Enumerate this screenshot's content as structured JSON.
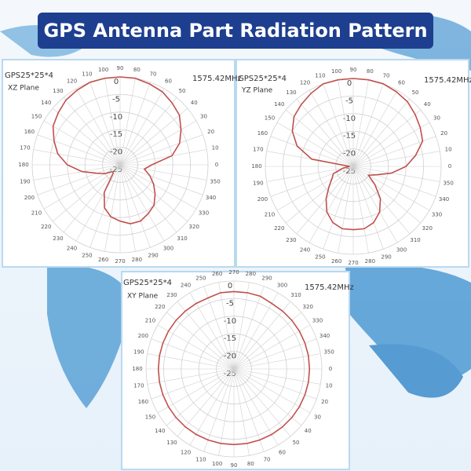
{
  "header": {
    "title": "GPS Antenna Part Radiation Pattern"
  },
  "chart_data": [
    {
      "type": "polar",
      "title": "GPS25*25*4",
      "subtitle": "XZ Plane",
      "annotation": "1575.42MHz",
      "direction": "counterclockwise",
      "color": "#c0504d",
      "x": [
        0,
        10,
        20,
        30,
        40,
        50,
        60,
        70,
        80,
        90,
        100,
        110,
        120,
        130,
        140,
        150,
        160,
        170,
        180,
        190,
        200,
        210,
        220,
        230,
        240,
        250,
        260,
        270,
        280,
        290,
        300,
        310,
        320,
        330,
        340,
        350
      ],
      "values": [
        -16,
        -10,
        -7,
        -5,
        -3,
        -2,
        -1,
        -0.5,
        0,
        0,
        0,
        0,
        -0.5,
        -1,
        -2,
        -3,
        -5,
        -7,
        -10,
        -14,
        -18,
        -20,
        -22,
        -22,
        -16,
        -12,
        -10,
        -9,
        -8,
        -8,
        -9,
        -10,
        -12,
        -14,
        -16,
        -18
      ],
      "ylim": [
        -25,
        0
      ],
      "yticks": [
        0,
        -5,
        -10,
        -15,
        -20,
        -25
      ],
      "grid": true
    },
    {
      "type": "polar",
      "title": "GPS25*25*4",
      "subtitle": "YZ Plane",
      "annotation": "1575.42MHz",
      "direction": "counterclockwise",
      "color": "#c0504d",
      "x": [
        0,
        10,
        20,
        30,
        40,
        50,
        60,
        70,
        80,
        90,
        100,
        110,
        120,
        130,
        140,
        150,
        160,
        170,
        180,
        190,
        200,
        210,
        220,
        230,
        240,
        250,
        260,
        270,
        280,
        290,
        300,
        310,
        320,
        330,
        340,
        350
      ],
      "values": [
        -10,
        -7,
        -4,
        -3,
        -2,
        -1,
        -0.5,
        0,
        0,
        0,
        0,
        0,
        -1,
        -2,
        -3,
        -5,
        -8,
        -13,
        -24,
        -22,
        -19,
        -18,
        -16,
        -13,
        -10,
        -8,
        -7,
        -7,
        -7,
        -8,
        -10,
        -13,
        -17,
        -20,
        -18,
        -14
      ],
      "ylim": [
        -25,
        0
      ],
      "yticks": [
        0,
        -5,
        -10,
        -15,
        -20,
        -25
      ],
      "grid": true
    },
    {
      "type": "polar",
      "title": "GPS25*25*4",
      "subtitle": "XY Plane",
      "annotation": "1575.42MHz",
      "direction": "clockwise",
      "color": "#c0504d",
      "x": [
        0,
        10,
        20,
        30,
        40,
        50,
        60,
        70,
        80,
        90,
        100,
        110,
        120,
        130,
        140,
        150,
        160,
        170,
        180,
        190,
        200,
        210,
        220,
        230,
        240,
        250,
        260,
        270,
        280,
        290,
        300,
        310,
        320,
        330,
        340,
        350
      ],
      "values": [
        -3.5,
        -3.5,
        -3.5,
        -3.5,
        -3.5,
        -3.5,
        -3.5,
        -3.5,
        -3.5,
        -3.5,
        -3.5,
        -3.5,
        -3.5,
        -3.5,
        -3.5,
        -3.5,
        -3.5,
        -3.5,
        -3.5,
        -3.5,
        -3.5,
        -3.5,
        -3.5,
        -3.5,
        -3.5,
        -3.5,
        -3,
        -3,
        -3,
        -3,
        -3.5,
        -3.5,
        -3.5,
        -3.5,
        -3.5,
        -3.5
      ],
      "ylim": [
        -25,
        0
      ],
      "yticks": [
        0,
        -5,
        -10,
        -15,
        -20,
        -25
      ],
      "grid": true
    }
  ]
}
